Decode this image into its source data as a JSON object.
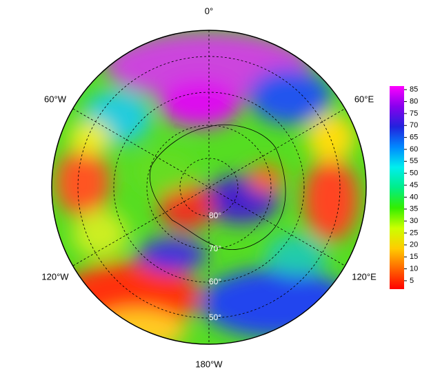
{
  "longitude_labels": [
    "0°",
    "60°E",
    "120°E",
    "180°W",
    "120°W",
    "60°W"
  ],
  "latitude_labels": [
    "80°",
    "70°",
    "60°",
    "50°"
  ],
  "colorbar": {
    "range": [
      1.5,
      86.5
    ],
    "ticks": [
      5,
      10,
      15,
      20,
      25,
      30,
      35,
      40,
      45,
      50,
      55,
      60,
      65,
      70,
      75,
      80,
      85
    ],
    "colors": [
      "#ff0000",
      "#ff6600",
      "#ffcc00",
      "#ccff00",
      "#33ee00",
      "#00ee88",
      "#00eeee",
      "#0088ff",
      "#2222dd",
      "#8800ee",
      "#ff00ff"
    ]
  }
}
